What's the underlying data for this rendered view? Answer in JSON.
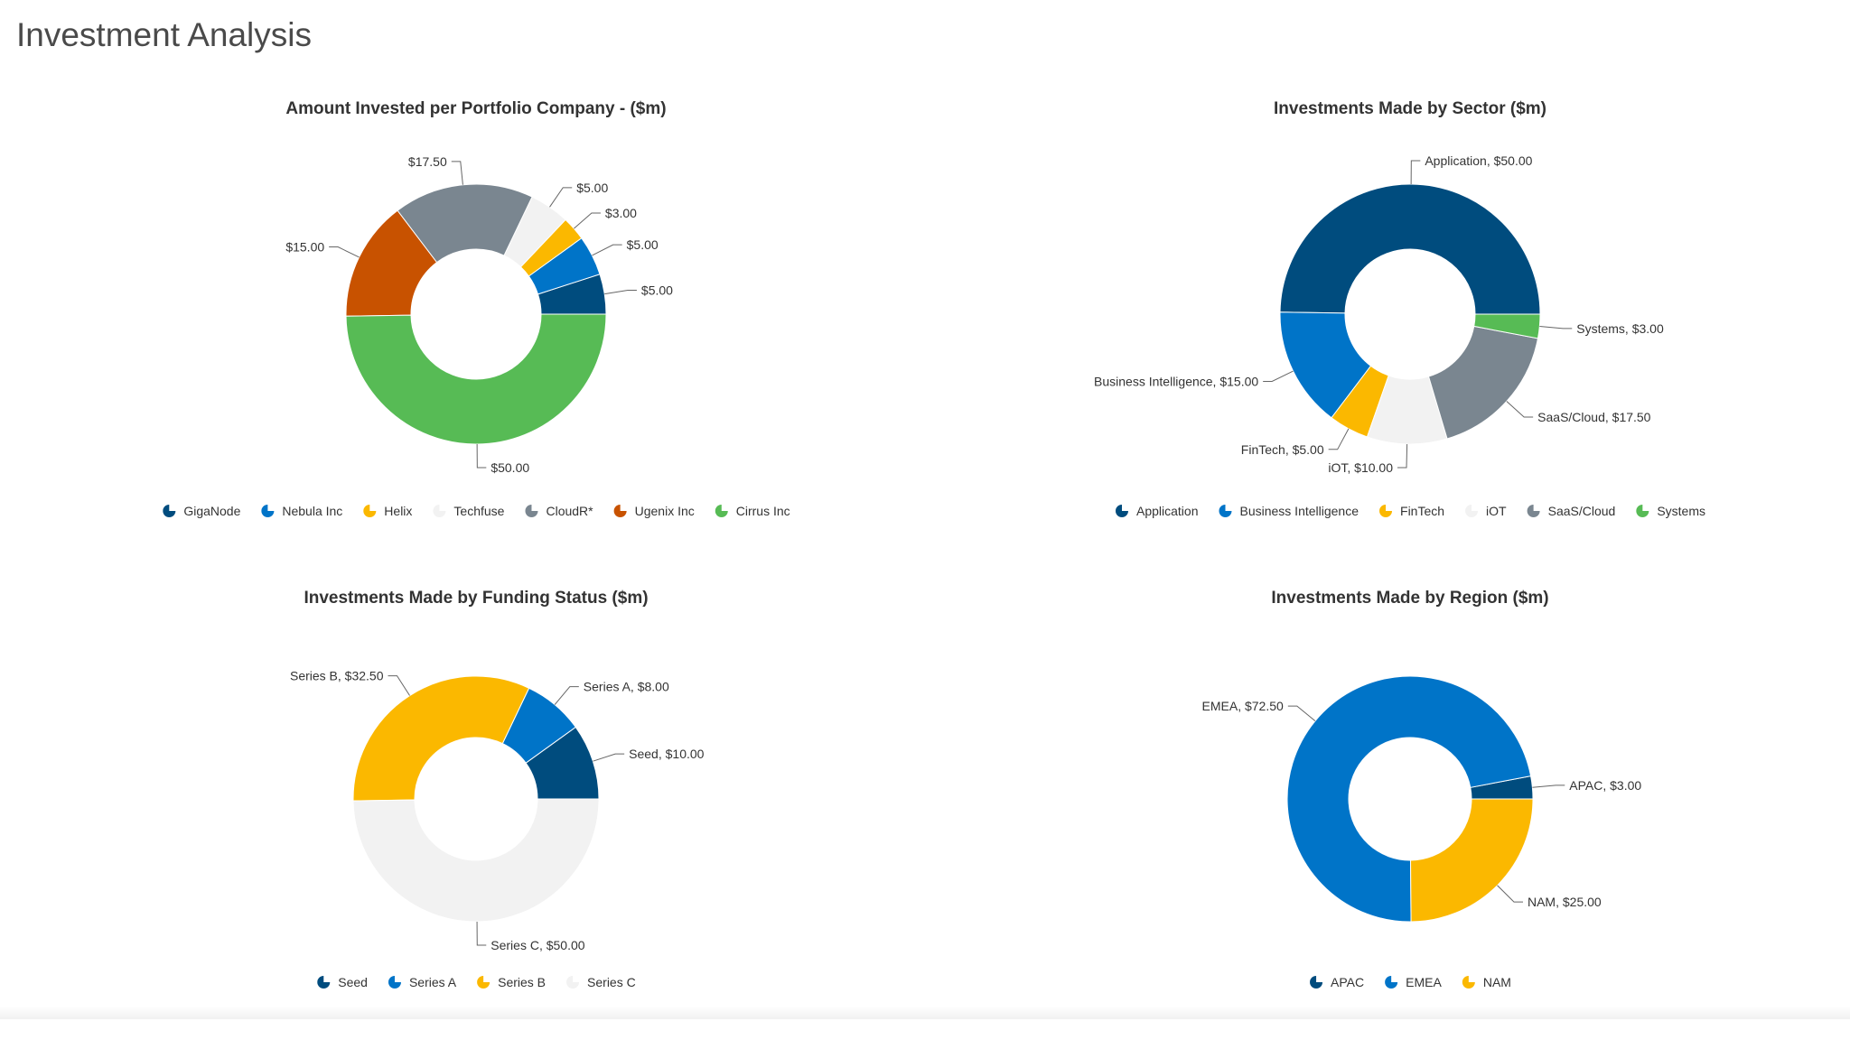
{
  "page": {
    "title": "Investment Analysis"
  },
  "chart_data": [
    {
      "type": "pie",
      "title": "Amount Invested per Portfolio Company - ($m)",
      "label_format": "value",
      "slices": [
        {
          "name": "GigaNode",
          "value": 5,
          "label": "$5.00",
          "color": "#004c7e"
        },
        {
          "name": "Nebula Inc",
          "value": 5,
          "label": "$5.00",
          "color": "#0074c8"
        },
        {
          "name": "Helix",
          "value": 3,
          "label": "$3.00",
          "color": "#fbb800"
        },
        {
          "name": "Techfuse",
          "value": 5,
          "label": "$5.00",
          "color": "#f2f2f2"
        },
        {
          "name": "CloudR*",
          "value": 17.5,
          "label": "$17.50",
          "color": "#7a8690"
        },
        {
          "name": "Ugenix Inc",
          "value": 15,
          "label": "$15.00",
          "color": "#c85200"
        },
        {
          "name": "Cirrus Inc",
          "value": 50,
          "label": "$50.00",
          "color": "#57bb55"
        }
      ]
    },
    {
      "type": "pie",
      "title": "Investments Made by Sector ($m)",
      "label_format": "name_value",
      "slices": [
        {
          "name": "Application",
          "value": 50,
          "label": "Application, $50.00",
          "color": "#004c7e"
        },
        {
          "name": "Business Intelligence",
          "value": 15,
          "label": "Business Intelligence, $15.00",
          "color": "#0074c8"
        },
        {
          "name": "FinTech",
          "value": 5,
          "label": "FinTech, $5.00",
          "color": "#fbb800"
        },
        {
          "name": "iOT",
          "value": 10,
          "label": "iOT, $10.00",
          "color": "#f2f2f2"
        },
        {
          "name": "SaaS/Cloud",
          "value": 17.5,
          "label": "SaaS/Cloud, $17.50",
          "color": "#7a8690"
        },
        {
          "name": "Systems",
          "value": 3,
          "label": "Systems, $3.00",
          "color": "#57bb55"
        }
      ]
    },
    {
      "type": "pie",
      "title": "Investments Made by Funding Status ($m)",
      "label_format": "name_value",
      "slices": [
        {
          "name": "Seed",
          "value": 10,
          "label": "Seed, $10.00",
          "color": "#004c7e"
        },
        {
          "name": "Series A",
          "value": 8,
          "label": "Series A, $8.00",
          "color": "#0074c8"
        },
        {
          "name": "Series B",
          "value": 32.5,
          "label": "Series B, $32.50",
          "color": "#fbb800"
        },
        {
          "name": "Series C",
          "value": 50,
          "label": "Series C, $50.00",
          "color": "#f2f2f2"
        }
      ]
    },
    {
      "type": "pie",
      "title": "Investments Made by Region ($m)",
      "label_format": "name_value",
      "slices": [
        {
          "name": "APAC",
          "value": 3,
          "label": "APAC, $3.00",
          "color": "#004c7e"
        },
        {
          "name": "EMEA",
          "value": 72.5,
          "label": "EMEA, $72.50",
          "color": "#0074c8"
        },
        {
          "name": "NAM",
          "value": 25,
          "label": "NAM, $25.00",
          "color": "#fbb800"
        }
      ]
    }
  ]
}
